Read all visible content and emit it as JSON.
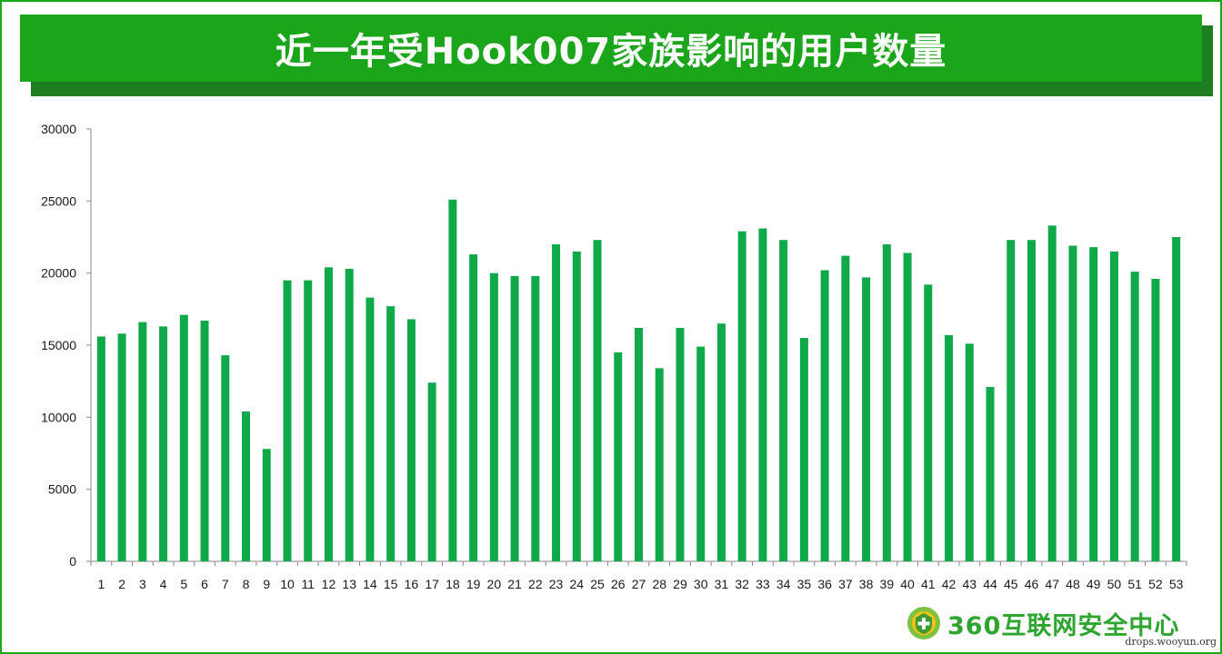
{
  "title": "近一年受Hook007家族影响的用户数量",
  "logo": {
    "text": "360互联网安全中心",
    "icon": "360-guard-logo-icon"
  },
  "watermark": "drops.wooyun.org",
  "colors": {
    "banner": "#1aa51a",
    "banner_shadow": "#1e7d1e",
    "bar": "#0fa94a",
    "frame": "#18a818"
  },
  "chart_data": {
    "type": "bar",
    "title": "近一年受Hook007家族影响的用户数量",
    "xlabel": "",
    "ylabel": "",
    "ylim": [
      0,
      30000
    ],
    "yticks": [
      0,
      5000,
      10000,
      15000,
      20000,
      25000,
      30000
    ],
    "grid": false,
    "legend": "none",
    "categories": [
      "1",
      "2",
      "3",
      "4",
      "5",
      "6",
      "7",
      "8",
      "9",
      "10",
      "11",
      "12",
      "13",
      "14",
      "15",
      "16",
      "17",
      "18",
      "19",
      "20",
      "21",
      "22",
      "23",
      "24",
      "25",
      "26",
      "27",
      "28",
      "29",
      "30",
      "31",
      "32",
      "33",
      "34",
      "35",
      "36",
      "37",
      "38",
      "39",
      "40",
      "41",
      "42",
      "43",
      "44",
      "45",
      "46",
      "47",
      "48",
      "49",
      "50",
      "51",
      "52",
      "53"
    ],
    "values": [
      15600,
      15800,
      16600,
      16300,
      17100,
      16700,
      14300,
      10400,
      7800,
      19500,
      19500,
      20400,
      20300,
      18300,
      17700,
      16800,
      12400,
      25100,
      21300,
      20000,
      19800,
      19800,
      22000,
      21500,
      22300,
      14500,
      16200,
      13400,
      16200,
      14900,
      16500,
      22900,
      23100,
      22300,
      15500,
      20200,
      21200,
      19700,
      22000,
      21400,
      19200,
      15700,
      15100,
      12100,
      22300,
      22300,
      23300,
      21900,
      21800,
      21500,
      20100,
      19600,
      22500
    ]
  }
}
